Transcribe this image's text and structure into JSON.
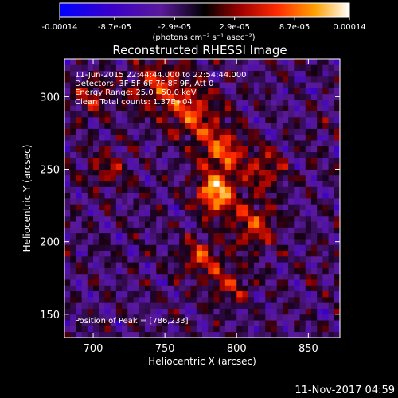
{
  "chart_data": {
    "type": "heatmap",
    "title": "Reconstructed RHESSI Image",
    "xlabel": "Heliocentric X (arcsec)",
    "ylabel": "Heliocentric Y (arcsec)",
    "xlim": [
      680,
      872
    ],
    "ylim": [
      134,
      326
    ],
    "x_ticks": [
      700,
      750,
      800,
      850
    ],
    "y_ticks": [
      150,
      200,
      250,
      300
    ],
    "colorbar": {
      "ticks": [
        "-0.00014",
        "-8.7e-05",
        "-2.9e-05",
        "2.9e-05",
        "8.7e-05",
        "0.00014"
      ],
      "tick_values": [
        -0.00014,
        -8.7e-05,
        -2.9e-05,
        2.9e-05,
        8.7e-05,
        0.00014
      ],
      "range": [
        -0.00014,
        0.00014
      ],
      "unit_label": "(photons cm⁻² s⁻¹ asec⁻²)"
    },
    "annotations": [
      "11-Jun-2015 22:44:44.000 to 22:54:44.000",
      "Detectors: 3F 5F 6F 7F 8F 9F, Att 0",
      "Energy Range: 25.0 - 50.0 keV",
      "Clean    Total counts: 1.37E+04"
    ],
    "peak_label": "Position of Peak = [786,233]",
    "peak": {
      "x": 786,
      "y": 233
    },
    "bright_regions": [
      {
        "x": 786,
        "y": 233,
        "sigma": 9,
        "amp": 1.0
      },
      {
        "x": 790,
        "y": 262,
        "sigma": 11,
        "amp": 0.65
      },
      {
        "x": 770,
        "y": 287,
        "sigma": 12,
        "amp": 0.55
      },
      {
        "x": 748,
        "y": 308,
        "sigma": 14,
        "amp": 0.5
      },
      {
        "x": 812,
        "y": 212,
        "sigma": 11,
        "amp": 0.55
      },
      {
        "x": 775,
        "y": 190,
        "sigma": 10,
        "amp": 0.5
      },
      {
        "x": 820,
        "y": 250,
        "sigma": 10,
        "amp": 0.45
      },
      {
        "x": 795,
        "y": 170,
        "sigma": 10,
        "amp": 0.4
      },
      {
        "x": 700,
        "y": 300,
        "sigma": 10,
        "amp": 0.35
      },
      {
        "x": 710,
        "y": 250,
        "sigma": 9,
        "amp": 0.35
      }
    ]
  },
  "footer": {
    "timestamp": "11-Nov-2017 04:59"
  }
}
